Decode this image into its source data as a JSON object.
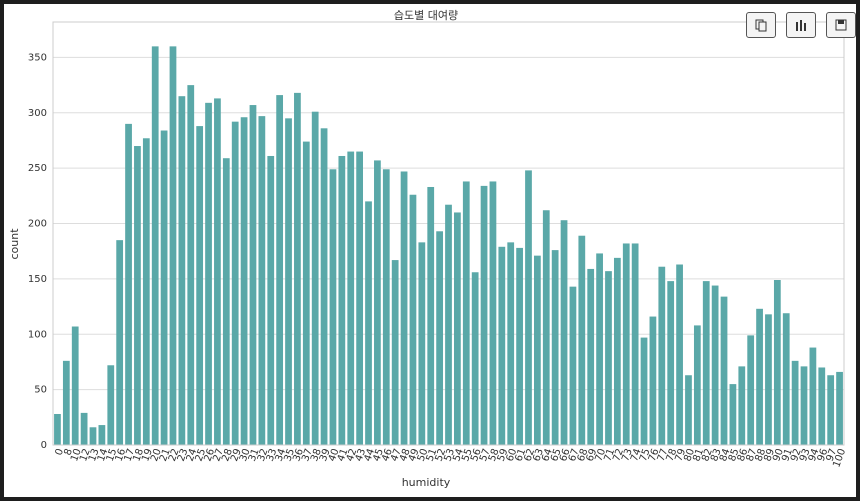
{
  "chart_data": {
    "type": "bar",
    "title": "습도별 대여량",
    "xlabel": "humidity",
    "ylabel": "count",
    "categories": [
      "0",
      "8",
      "10",
      "12",
      "13",
      "14",
      "15",
      "16",
      "17",
      "18",
      "19",
      "20",
      "21",
      "22",
      "23",
      "24",
      "25",
      "26",
      "27",
      "28",
      "29",
      "30",
      "31",
      "32",
      "33",
      "34",
      "35",
      "36",
      "37",
      "38",
      "39",
      "40",
      "41",
      "42",
      "43",
      "44",
      "45",
      "46",
      "47",
      "48",
      "49",
      "50",
      "51",
      "52",
      "53",
      "54",
      "55",
      "56",
      "57",
      "58",
      "59",
      "60",
      "61",
      "62",
      "63",
      "64",
      "65",
      "66",
      "67",
      "68",
      "69",
      "70",
      "71",
      "72",
      "73",
      "74",
      "75",
      "76",
      "77",
      "78",
      "79",
      "80",
      "81",
      "82",
      "83",
      "84",
      "85",
      "86",
      "87",
      "88",
      "89",
      "90",
      "91",
      "92",
      "93",
      "94",
      "96",
      "97",
      "100"
    ],
    "values": [
      28,
      76,
      107,
      29,
      16,
      18,
      72,
      185,
      290,
      270,
      277,
      360,
      284,
      360,
      315,
      325,
      288,
      309,
      313,
      259,
      292,
      296,
      307,
      297,
      261,
      316,
      295,
      318,
      274,
      301,
      286,
      249,
      261,
      265,
      265,
      220,
      257,
      249,
      167,
      247,
      226,
      183,
      233,
      193,
      217,
      210,
      238,
      156,
      234,
      238,
      179,
      183,
      178,
      248,
      171,
      212,
      176,
      203,
      143,
      189,
      159,
      173,
      157,
      169,
      182,
      182,
      97,
      116,
      161,
      148,
      163,
      63,
      108,
      148,
      144,
      134,
      55,
      71,
      99,
      123,
      118,
      149,
      119,
      76,
      71,
      88,
      70,
      63,
      66
    ],
    "color": "#5aa8a8",
    "ylim": [
      0,
      382
    ],
    "yticks": [
      0,
      50,
      100,
      150,
      200,
      250,
      300,
      350
    ],
    "grid": true
  }
}
